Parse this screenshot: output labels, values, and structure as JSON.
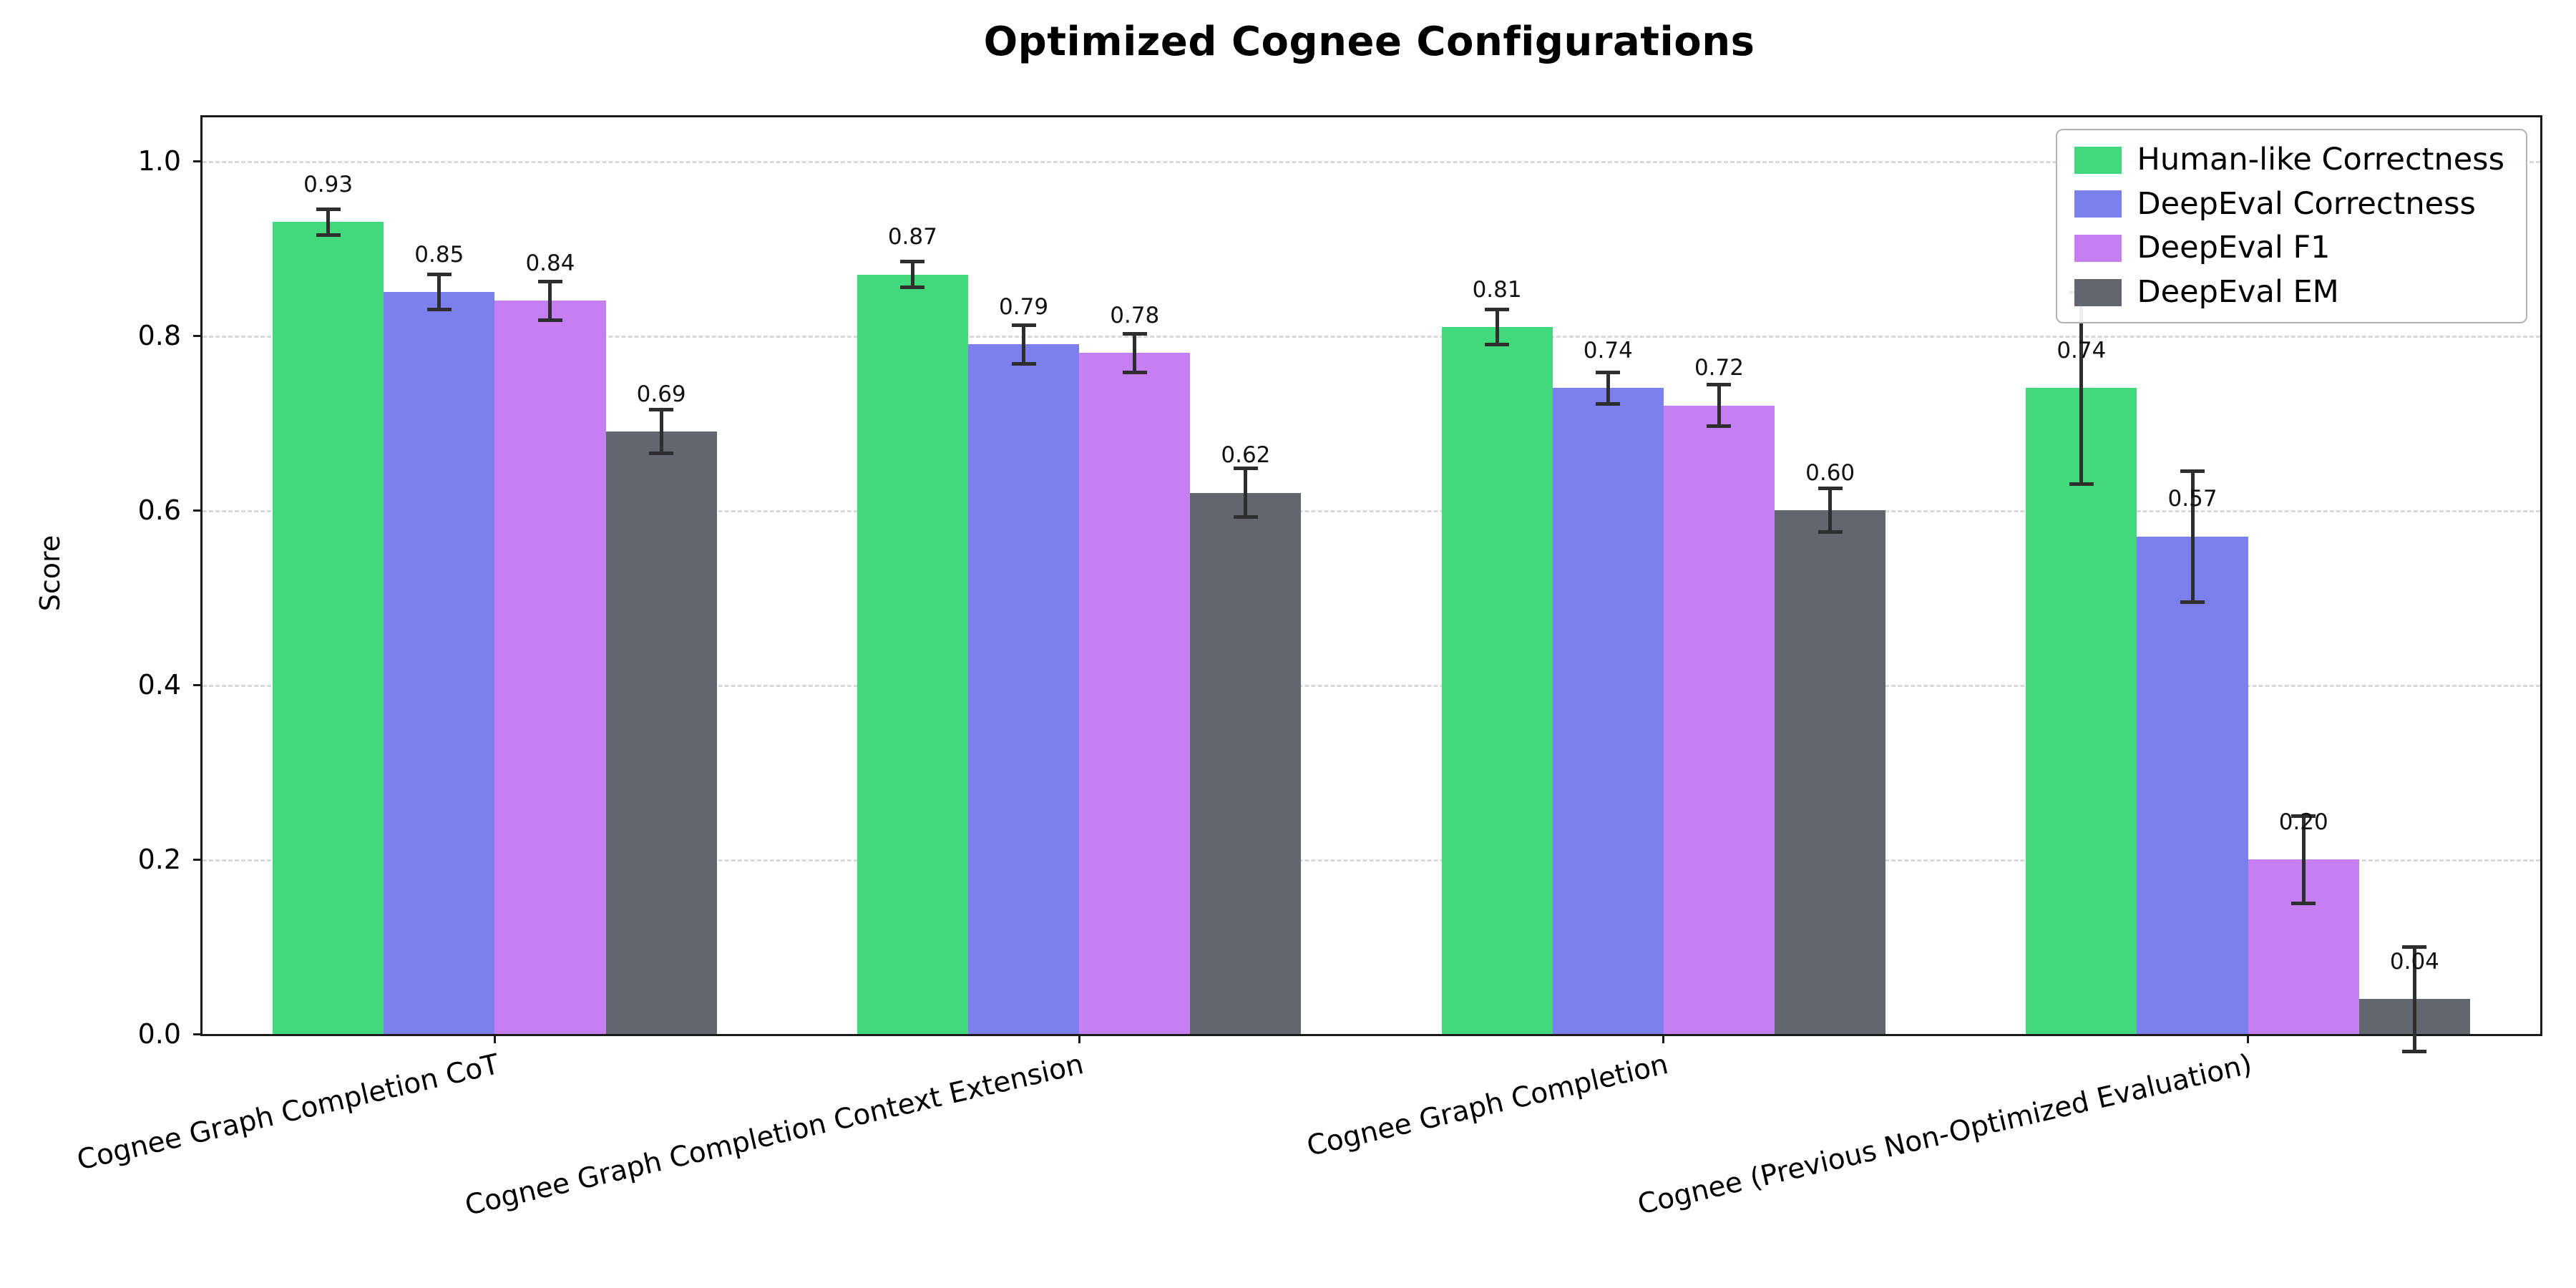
{
  "figure": {
    "title": "Optimized Cognee Configurations",
    "ylabel": "Score"
  },
  "chart_data": {
    "type": "bar",
    "title": "Optimized Cognee Configurations",
    "xlabel": "",
    "ylabel": "Score",
    "ylim": [
      0,
      1.05
    ],
    "yticks": [
      0.0,
      0.2,
      0.4,
      0.6,
      0.8,
      1.0
    ],
    "grid": "horizontal-dashed",
    "legend_position": "upper-right",
    "error_bars": true,
    "categories": [
      "Cognee Graph Completion CoT",
      "Cognee Graph Completion Context Extension",
      "Cognee Graph Completion",
      "Cognee (Previous Non-Optimized Evaluation)"
    ],
    "series": [
      {
        "name": "Human-like Correctness",
        "color": "#41d97b",
        "values": [
          0.93,
          0.87,
          0.81,
          0.74
        ],
        "errors": [
          0.015,
          0.015,
          0.02,
          0.11
        ]
      },
      {
        "name": "DeepEval Correctness",
        "color": "#7c80ee",
        "values": [
          0.85,
          0.79,
          0.74,
          0.57
        ],
        "errors": [
          0.02,
          0.022,
          0.018,
          0.075
        ]
      },
      {
        "name": "DeepEval F1",
        "color": "#c57ff2",
        "values": [
          0.84,
          0.78,
          0.72,
          0.2
        ],
        "errors": [
          0.022,
          0.022,
          0.024,
          0.05
        ]
      },
      {
        "name": "DeepEval EM",
        "color": "#63666f",
        "values": [
          0.69,
          0.62,
          0.6,
          0.04
        ],
        "errors": [
          0.025,
          0.028,
          0.025,
          0.06
        ]
      }
    ],
    "bar_label_format": "0.00",
    "bar_label_offset": 0.028
  }
}
